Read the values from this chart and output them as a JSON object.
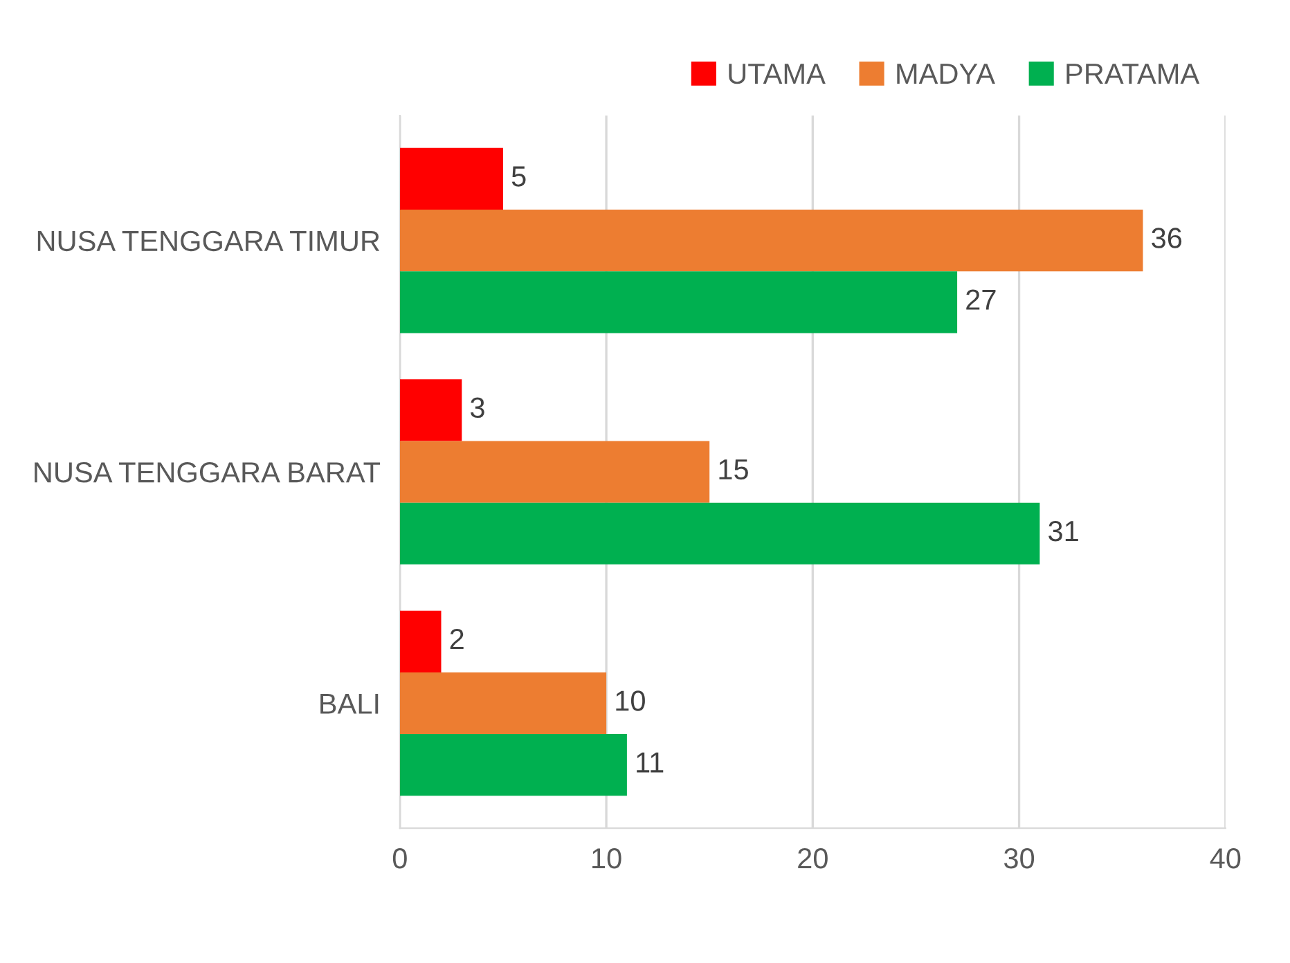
{
  "chart_data": {
    "type": "bar",
    "orientation": "horizontal",
    "categories": [
      "NUSA TENGGARA TIMUR",
      "NUSA TENGGARA BARAT",
      "BALI"
    ],
    "series": [
      {
        "name": "UTAMA",
        "color": "#ff0000",
        "values": [
          5,
          3,
          2
        ]
      },
      {
        "name": "MADYA",
        "color": "#ed7d31",
        "values": [
          36,
          15,
          10
        ]
      },
      {
        "name": "PRATAMA",
        "color": "#00b050",
        "values": [
          27,
          31,
          11
        ]
      }
    ],
    "xlim": [
      0,
      40
    ],
    "xticks": [
      0,
      10,
      20,
      30,
      40
    ],
    "grid": "x",
    "legend": "top right",
    "data_labels": true
  }
}
